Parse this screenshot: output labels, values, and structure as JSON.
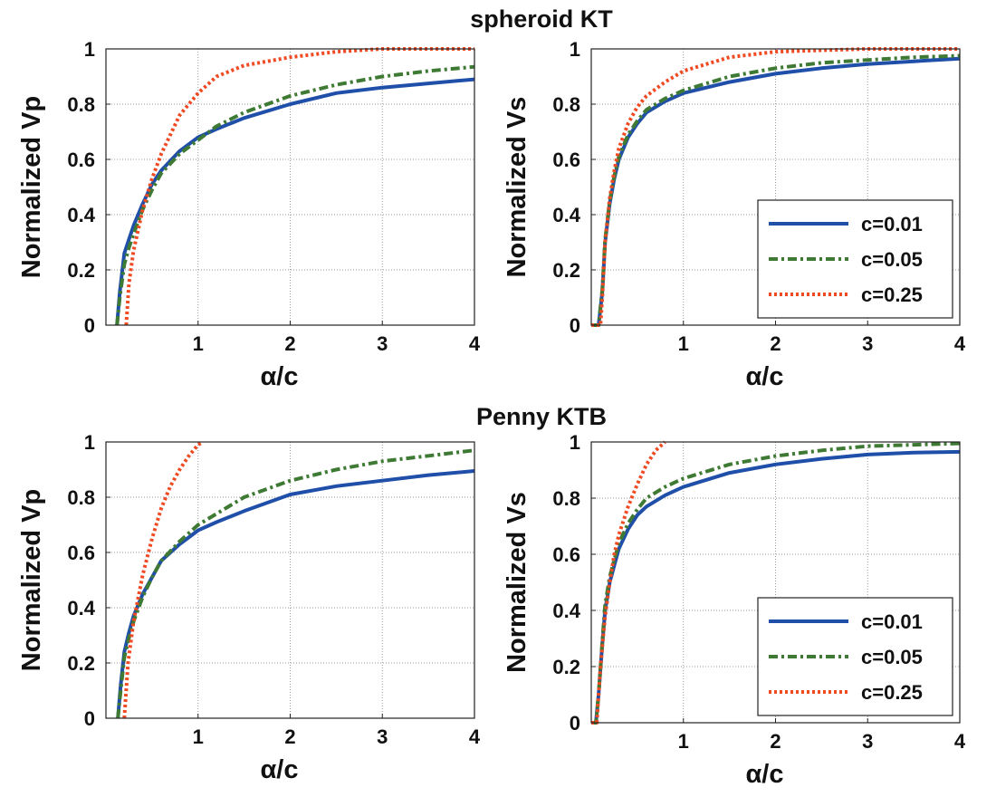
{
  "figure": {
    "titles": [
      "spheroid KT",
      "Penny KTB"
    ]
  },
  "chart_data": [
    {
      "type": "line",
      "ylabel": "Normalized Vp",
      "xlabel": "α/c",
      "xlim": [
        0,
        4
      ],
      "ylim": [
        0,
        1
      ],
      "xticks": [
        "1",
        "2",
        "3",
        "4"
      ],
      "yticks": [
        "0",
        "0.2",
        "0.4",
        "0.6",
        "0.8",
        "1"
      ],
      "grid": true,
      "legend": null,
      "series": [
        {
          "name": "c=0.01",
          "x": [
            0.12,
            0.15,
            0.2,
            0.25,
            0.3,
            0.4,
            0.5,
            0.6,
            0.8,
            1,
            1.2,
            1.5,
            2,
            2.5,
            3,
            3.5,
            4
          ],
          "y": [
            0,
            0.12,
            0.26,
            0.31,
            0.36,
            0.44,
            0.51,
            0.56,
            0.63,
            0.68,
            0.71,
            0.75,
            0.8,
            0.84,
            0.86,
            0.875,
            0.89
          ]
        },
        {
          "name": "c=0.05",
          "x": [
            0.12,
            0.15,
            0.2,
            0.25,
            0.3,
            0.4,
            0.5,
            0.6,
            0.8,
            1,
            1.2,
            1.5,
            2,
            2.5,
            3,
            3.5,
            4
          ],
          "y": [
            0,
            0.1,
            0.22,
            0.28,
            0.33,
            0.42,
            0.49,
            0.55,
            0.62,
            0.67,
            0.72,
            0.77,
            0.83,
            0.87,
            0.9,
            0.92,
            0.935
          ]
        },
        {
          "name": "c=0.25",
          "x": [
            0.22,
            0.25,
            0.3,
            0.4,
            0.5,
            0.6,
            0.8,
            1,
            1.2,
            1.5,
            2,
            2.5,
            3,
            4
          ],
          "y": [
            0,
            0.15,
            0.27,
            0.42,
            0.53,
            0.62,
            0.76,
            0.84,
            0.9,
            0.94,
            0.97,
            0.99,
            1.0,
            1.0
          ]
        }
      ]
    },
    {
      "type": "line",
      "ylabel": "Normalized Vs",
      "xlabel": "α/c",
      "xlim": [
        0,
        4
      ],
      "ylim": [
        0,
        1
      ],
      "xticks": [
        "1",
        "2",
        "3",
        "4"
      ],
      "yticks": [
        "0",
        "0.2",
        "0.4",
        "0.6",
        "0.8",
        "1"
      ],
      "grid": true,
      "legend": "bottom-right",
      "series": [
        {
          "name": "c=0.01",
          "x": [
            0,
            0.08,
            0.12,
            0.15,
            0.2,
            0.25,
            0.3,
            0.4,
            0.5,
            0.6,
            0.8,
            1,
            1.5,
            2,
            2.5,
            3,
            3.5,
            4
          ],
          "y": [
            0,
            0,
            0.12,
            0.3,
            0.44,
            0.53,
            0.6,
            0.68,
            0.73,
            0.77,
            0.81,
            0.84,
            0.88,
            0.91,
            0.93,
            0.945,
            0.955,
            0.965
          ]
        },
        {
          "name": "c=0.05",
          "x": [
            0,
            0.08,
            0.12,
            0.15,
            0.2,
            0.25,
            0.3,
            0.4,
            0.5,
            0.6,
            0.8,
            1,
            1.5,
            2,
            2.5,
            3,
            3.5,
            4
          ],
          "y": [
            0,
            0,
            0.13,
            0.31,
            0.45,
            0.54,
            0.61,
            0.69,
            0.74,
            0.78,
            0.82,
            0.85,
            0.9,
            0.93,
            0.95,
            0.96,
            0.97,
            0.975
          ]
        },
        {
          "name": "c=0.25",
          "x": [
            0,
            0.1,
            0.12,
            0.15,
            0.2,
            0.25,
            0.3,
            0.4,
            0.5,
            0.6,
            0.8,
            1,
            1.2,
            1.5,
            2,
            2.5,
            3,
            4
          ],
          "y": [
            0,
            0,
            0.1,
            0.3,
            0.46,
            0.56,
            0.64,
            0.73,
            0.79,
            0.83,
            0.88,
            0.92,
            0.94,
            0.97,
            0.99,
            0.995,
            1.0,
            1.0
          ]
        }
      ]
    },
    {
      "type": "line",
      "ylabel": "Normalized Vp",
      "xlabel": "α/c",
      "xlim": [
        0,
        4
      ],
      "ylim": [
        0,
        1
      ],
      "xticks": [
        "1",
        "2",
        "3",
        "4"
      ],
      "yticks": [
        "0",
        "0.2",
        "0.4",
        "0.6",
        "0.8",
        "1"
      ],
      "grid": true,
      "legend": null,
      "series": [
        {
          "name": "c=0.01",
          "x": [
            0.13,
            0.16,
            0.2,
            0.25,
            0.3,
            0.4,
            0.5,
            0.6,
            0.8,
            1,
            1.2,
            1.5,
            2,
            2.5,
            3,
            3.5,
            4
          ],
          "y": [
            0,
            0.12,
            0.24,
            0.31,
            0.37,
            0.45,
            0.51,
            0.57,
            0.63,
            0.68,
            0.71,
            0.75,
            0.81,
            0.84,
            0.86,
            0.88,
            0.895
          ]
        },
        {
          "name": "c=0.05",
          "x": [
            0.13,
            0.16,
            0.2,
            0.25,
            0.3,
            0.4,
            0.5,
            0.6,
            0.8,
            1,
            1.2,
            1.5,
            2,
            2.5,
            3,
            3.5,
            4
          ],
          "y": [
            0,
            0.1,
            0.22,
            0.29,
            0.35,
            0.44,
            0.51,
            0.57,
            0.64,
            0.7,
            0.74,
            0.8,
            0.86,
            0.9,
            0.93,
            0.95,
            0.97
          ]
        },
        {
          "name": "c=0.25",
          "x": [
            0.2,
            0.24,
            0.3,
            0.4,
            0.5,
            0.6,
            0.7,
            0.8,
            0.9,
            1,
            1.05
          ],
          "y": [
            0,
            0.2,
            0.35,
            0.52,
            0.65,
            0.76,
            0.84,
            0.9,
            0.95,
            0.99,
            1.0
          ]
        }
      ]
    },
    {
      "type": "line",
      "ylabel": "Normalized Vs",
      "xlabel": "α/c",
      "xlim": [
        0,
        4
      ],
      "ylim": [
        0,
        1
      ],
      "xticks": [
        "1",
        "2",
        "3",
        "4"
      ],
      "yticks": [
        "0",
        "0.2",
        "0.4",
        "0.6",
        "0.8",
        "1"
      ],
      "grid": true,
      "legend": "bottom-right",
      "series": [
        {
          "name": "c=0.01",
          "x": [
            0,
            0.05,
            0.08,
            0.12,
            0.15,
            0.2,
            0.25,
            0.3,
            0.4,
            0.5,
            0.6,
            0.8,
            1,
            1.5,
            2,
            2.5,
            3,
            3.5,
            4
          ],
          "y": [
            0,
            0,
            0.1,
            0.28,
            0.4,
            0.5,
            0.56,
            0.62,
            0.69,
            0.74,
            0.77,
            0.81,
            0.84,
            0.89,
            0.92,
            0.94,
            0.955,
            0.962,
            0.965
          ]
        },
        {
          "name": "c=0.05",
          "x": [
            0,
            0.05,
            0.08,
            0.12,
            0.15,
            0.2,
            0.25,
            0.3,
            0.4,
            0.5,
            0.6,
            0.8,
            1,
            1.5,
            2,
            2.5,
            3,
            3.5,
            4
          ],
          "y": [
            0,
            0,
            0.1,
            0.29,
            0.42,
            0.52,
            0.58,
            0.64,
            0.71,
            0.76,
            0.8,
            0.84,
            0.87,
            0.92,
            0.95,
            0.97,
            0.985,
            0.99,
            0.995
          ]
        },
        {
          "name": "c=0.25",
          "x": [
            0,
            0.06,
            0.1,
            0.15,
            0.2,
            0.25,
            0.3,
            0.4,
            0.5,
            0.6,
            0.7,
            0.8
          ],
          "y": [
            0,
            0,
            0.2,
            0.38,
            0.5,
            0.6,
            0.67,
            0.77,
            0.85,
            0.92,
            0.97,
            1.0
          ]
        }
      ]
    }
  ],
  "series_styles": {
    "c=0.01": {
      "color": "#1f4fa8",
      "dash": "solid"
    },
    "c=0.05": {
      "color": "#3f7a34",
      "dash": "dashdot"
    },
    "c=0.25": {
      "color": "#f04a23",
      "dash": "dotted"
    }
  }
}
